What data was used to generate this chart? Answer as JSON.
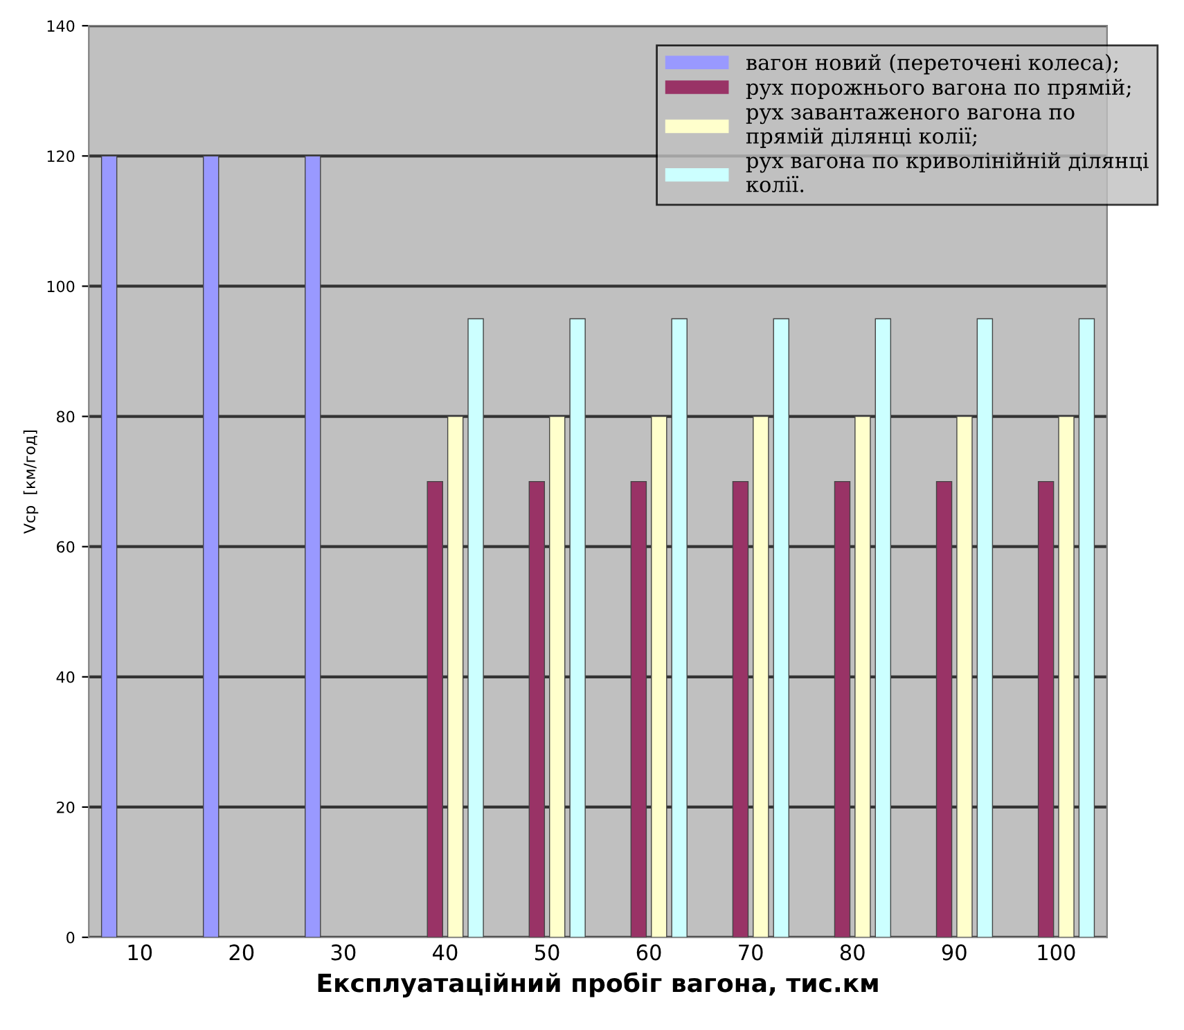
{
  "chart_data": {
    "type": "bar",
    "xlabel": "Експлуатаційний пробіг вагона, тис.км",
    "ylabel": "Vср  [км/год]",
    "categories": [
      "10",
      "20",
      "30",
      "40",
      "50",
      "60",
      "70",
      "80",
      "90",
      "100"
    ],
    "series": [
      {
        "name": "вагон новий (переточені колеса);",
        "color": "#9999ff",
        "values": [
          120,
          120,
          120,
          null,
          null,
          null,
          null,
          null,
          null,
          null
        ]
      },
      {
        "name": "рух порожнього вагона по прямій;",
        "color": "#993366",
        "values": [
          null,
          null,
          null,
          70,
          70,
          70,
          70,
          70,
          70,
          70
        ]
      },
      {
        "name": "рух завантаженого вагона по\nпрямій ділянці колії;",
        "color": "#ffffcc",
        "values": [
          null,
          null,
          null,
          80,
          80,
          80,
          80,
          80,
          80,
          80
        ]
      },
      {
        "name": "рух вагона по криволінійній ділянці\nколії.",
        "color": "#ccffff",
        "values": [
          null,
          null,
          null,
          95,
          95,
          95,
          95,
          95,
          95,
          95
        ]
      }
    ],
    "ylim": [
      0,
      140
    ],
    "yticks": [
      0,
      20,
      40,
      60,
      80,
      100,
      120,
      140
    ],
    "grid": "y",
    "legend": "top right"
  }
}
